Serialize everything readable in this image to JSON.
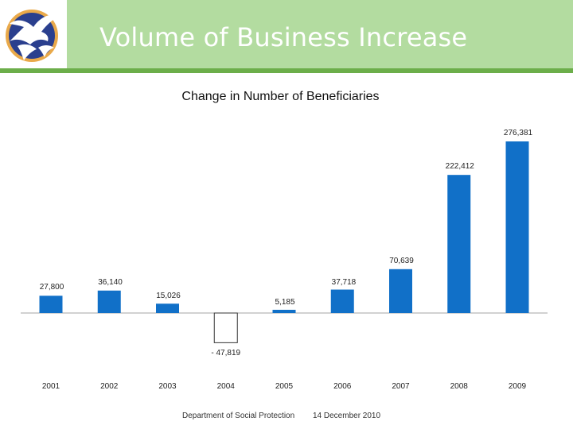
{
  "slide": {
    "title": "Volume of Business Increase"
  },
  "footer": {
    "department": "Department of Social Protection",
    "date": "14 December 2010"
  },
  "colors": {
    "header_band": "#b3dca0",
    "header_rule": "#6cae4a",
    "bar_fill": "#1170c8",
    "negative_bar_fill": "#ffffff"
  },
  "chart_data": {
    "type": "bar",
    "title": "Change in Number of Beneficiaries",
    "categories": [
      "2001",
      "2002",
      "2003",
      "2004",
      "2005",
      "2006",
      "2007",
      "2008",
      "2009"
    ],
    "values": [
      27800,
      36140,
      15026,
      -47819,
      5185,
      37718,
      70639,
      222412,
      276381
    ],
    "data_labels": [
      "27,800",
      "36,140",
      "15,026",
      "- 47,819",
      "5,185",
      "37,718",
      "70,639",
      "222,412",
      "276,381"
    ],
    "xlabel": "",
    "ylabel": "",
    "legend": "none",
    "grid": false
  }
}
